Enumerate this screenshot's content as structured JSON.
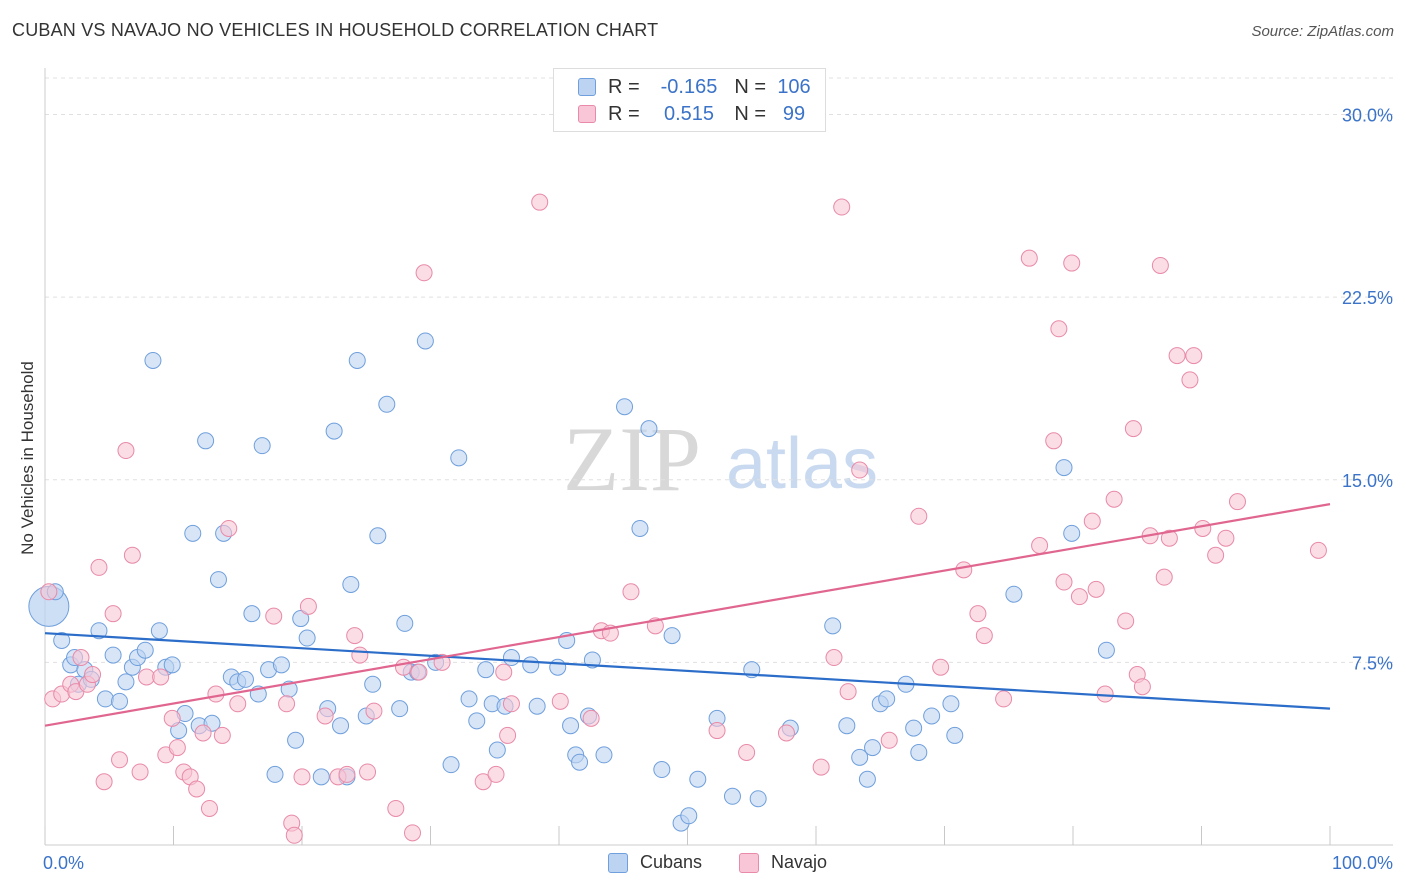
{
  "title": "CUBAN VS NAVAJO NO VEHICLES IN HOUSEHOLD CORRELATION CHART",
  "source": "Source: ZipAtlas.com",
  "watermark": {
    "zip": "ZIP",
    "atlas": "atlas"
  },
  "legend_top": {
    "r_label": "R =",
    "n_label": "N =",
    "rows": [
      {
        "r": "-0.165",
        "n": "106"
      },
      {
        "r": "0.515",
        "n": "99"
      }
    ]
  },
  "legend_bottom": [
    "Cubans",
    "Navajo"
  ],
  "colors": {
    "cubans_fill": "#bcd4f2",
    "cubans_stroke": "#6f9fdc",
    "cubans_line": "#2b6dc9",
    "navajo_fill": "#f8c6d6",
    "navajo_stroke": "#e88aa8",
    "navajo_line": "#e06690",
    "axis_label": "#3b73c8"
  },
  "chart_data": {
    "type": "scatter",
    "title": "CUBAN VS NAVAJO NO VEHICLES IN HOUSEHOLD CORRELATION CHART",
    "xlabel": "",
    "ylabel": "No Vehicles in Household",
    "xlim": [
      0,
      100
    ],
    "ylim": [
      0,
      31.5
    ],
    "x_tick_labels": [
      "0.0%",
      "100.0%"
    ],
    "y_ticks": [
      7.5,
      15.0,
      22.5,
      30.0
    ],
    "y_tick_labels": [
      "7.5%",
      "15.0%",
      "22.5%",
      "30.0%"
    ],
    "grid": true,
    "legend_position": "top-center",
    "series": [
      {
        "name": "Cubans",
        "r": -0.165,
        "n": 106,
        "trend": {
          "x": [
            0,
            100
          ],
          "y": [
            8.7,
            5.6
          ]
        },
        "points": [
          [
            0.3,
            9.8
          ],
          [
            0.8,
            10.4
          ],
          [
            1.3,
            8.4
          ],
          [
            2.0,
            7.4
          ],
          [
            2.3,
            7.7
          ],
          [
            2.6,
            6.6
          ],
          [
            3.1,
            7.2
          ],
          [
            3.6,
            6.8
          ],
          [
            4.2,
            8.8
          ],
          [
            4.7,
            6.0
          ],
          [
            5.3,
            7.8
          ],
          [
            5.8,
            5.9
          ],
          [
            6.3,
            6.7
          ],
          [
            6.8,
            7.3
          ],
          [
            7.2,
            7.7
          ],
          [
            7.8,
            8.0
          ],
          [
            8.4,
            19.9
          ],
          [
            8.9,
            8.8
          ],
          [
            9.4,
            7.3
          ],
          [
            9.9,
            7.4
          ],
          [
            10.4,
            4.7
          ],
          [
            10.9,
            5.4
          ],
          [
            11.5,
            12.8
          ],
          [
            12.0,
            4.9
          ],
          [
            12.5,
            16.6
          ],
          [
            13.0,
            5.0
          ],
          [
            13.5,
            10.9
          ],
          [
            13.9,
            12.8
          ],
          [
            14.5,
            6.9
          ],
          [
            15.0,
            6.7
          ],
          [
            15.6,
            6.8
          ],
          [
            16.1,
            9.5
          ],
          [
            16.6,
            6.2
          ],
          [
            16.9,
            16.4
          ],
          [
            17.4,
            7.2
          ],
          [
            17.9,
            2.9
          ],
          [
            18.4,
            7.4
          ],
          [
            19.0,
            6.4
          ],
          [
            19.5,
            4.3
          ],
          [
            19.9,
            9.3
          ],
          [
            20.4,
            8.5
          ],
          [
            21.5,
            2.8
          ],
          [
            22.0,
            5.6
          ],
          [
            22.5,
            17.0
          ],
          [
            23.0,
            4.9
          ],
          [
            23.5,
            2.8
          ],
          [
            23.8,
            10.7
          ],
          [
            24.3,
            19.9
          ],
          [
            25.0,
            5.3
          ],
          [
            25.5,
            6.6
          ],
          [
            25.9,
            12.7
          ],
          [
            26.6,
            18.1
          ],
          [
            27.6,
            5.6
          ],
          [
            28.0,
            9.1
          ],
          [
            28.5,
            7.1
          ],
          [
            29.0,
            7.1
          ],
          [
            29.6,
            20.7
          ],
          [
            30.4,
            7.5
          ],
          [
            31.6,
            3.3
          ],
          [
            32.2,
            15.9
          ],
          [
            33.0,
            6.0
          ],
          [
            33.6,
            5.1
          ],
          [
            34.3,
            7.2
          ],
          [
            34.8,
            5.8
          ],
          [
            35.2,
            3.9
          ],
          [
            35.8,
            5.7
          ],
          [
            36.3,
            7.7
          ],
          [
            37.8,
            7.4
          ],
          [
            38.3,
            5.7
          ],
          [
            39.9,
            7.3
          ],
          [
            40.6,
            8.4
          ],
          [
            40.9,
            4.9
          ],
          [
            41.3,
            3.7
          ],
          [
            41.6,
            3.4
          ],
          [
            42.3,
            5.3
          ],
          [
            42.6,
            7.6
          ],
          [
            43.5,
            3.7
          ],
          [
            45.1,
            18.0
          ],
          [
            46.3,
            13.0
          ],
          [
            47.0,
            17.1
          ],
          [
            48.0,
            3.1
          ],
          [
            48.8,
            8.6
          ],
          [
            49.5,
            0.9
          ],
          [
            50.1,
            1.2
          ],
          [
            50.8,
            2.7
          ],
          [
            52.3,
            5.2
          ],
          [
            53.5,
            2.0
          ],
          [
            55.0,
            7.2
          ],
          [
            55.5,
            1.9
          ],
          [
            58.0,
            4.8
          ],
          [
            61.3,
            9.0
          ],
          [
            62.4,
            4.9
          ],
          [
            63.4,
            3.6
          ],
          [
            64.0,
            2.7
          ],
          [
            64.4,
            4.0
          ],
          [
            65.0,
            5.8
          ],
          [
            65.5,
            6.0
          ],
          [
            67.0,
            6.6
          ],
          [
            67.6,
            4.8
          ],
          [
            68.0,
            3.8
          ],
          [
            69.0,
            5.3
          ],
          [
            70.5,
            5.8
          ],
          [
            70.8,
            4.5
          ],
          [
            75.4,
            10.3
          ],
          [
            79.3,
            15.5
          ],
          [
            79.9,
            12.8
          ],
          [
            82.6,
            8.0
          ]
        ]
      },
      {
        "name": "Navajo",
        "r": 0.515,
        "n": 99,
        "trend": {
          "x": [
            0,
            100
          ],
          "y": [
            4.9,
            14.0
          ]
        },
        "points": [
          [
            0.3,
            10.4
          ],
          [
            0.6,
            6.0
          ],
          [
            1.3,
            6.2
          ],
          [
            2.0,
            6.6
          ],
          [
            2.4,
            6.3
          ],
          [
            2.8,
            7.7
          ],
          [
            3.3,
            6.6
          ],
          [
            3.7,
            7.0
          ],
          [
            4.2,
            11.4
          ],
          [
            4.6,
            2.6
          ],
          [
            5.3,
            9.5
          ],
          [
            5.8,
            3.5
          ],
          [
            6.3,
            16.2
          ],
          [
            6.8,
            11.9
          ],
          [
            7.4,
            3.0
          ],
          [
            7.9,
            6.9
          ],
          [
            9.0,
            6.9
          ],
          [
            9.4,
            3.7
          ],
          [
            9.9,
            5.2
          ],
          [
            10.3,
            4.0
          ],
          [
            10.8,
            3.0
          ],
          [
            11.3,
            2.8
          ],
          [
            11.8,
            2.3
          ],
          [
            12.3,
            4.6
          ],
          [
            12.8,
            1.5
          ],
          [
            13.3,
            6.2
          ],
          [
            13.8,
            4.5
          ],
          [
            14.3,
            13.0
          ],
          [
            15.0,
            5.8
          ],
          [
            17.8,
            9.4
          ],
          [
            18.8,
            5.8
          ],
          [
            19.2,
            0.9
          ],
          [
            19.4,
            0.4
          ],
          [
            20.0,
            2.8
          ],
          [
            20.5,
            9.8
          ],
          [
            21.8,
            5.3
          ],
          [
            22.8,
            2.8
          ],
          [
            23.5,
            2.9
          ],
          [
            24.1,
            8.6
          ],
          [
            24.5,
            7.8
          ],
          [
            25.1,
            3.0
          ],
          [
            25.6,
            5.5
          ],
          [
            27.3,
            1.5
          ],
          [
            27.9,
            7.3
          ],
          [
            28.6,
            0.5
          ],
          [
            29.1,
            7.1
          ],
          [
            29.5,
            23.5
          ],
          [
            30.9,
            7.5
          ],
          [
            34.1,
            2.6
          ],
          [
            35.1,
            2.9
          ],
          [
            35.7,
            7.1
          ],
          [
            36.0,
            4.5
          ],
          [
            36.3,
            5.8
          ],
          [
            38.5,
            26.4
          ],
          [
            40.1,
            5.9
          ],
          [
            42.5,
            5.2
          ],
          [
            43.3,
            8.8
          ],
          [
            44.0,
            8.7
          ],
          [
            45.6,
            10.4
          ],
          [
            47.5,
            9.0
          ],
          [
            52.3,
            4.7
          ],
          [
            54.6,
            3.8
          ],
          [
            57.7,
            4.6
          ],
          [
            60.4,
            3.2
          ],
          [
            61.4,
            7.7
          ],
          [
            62.0,
            26.2
          ],
          [
            62.5,
            6.3
          ],
          [
            63.4,
            15.4
          ],
          [
            65.7,
            4.3
          ],
          [
            68.0,
            13.5
          ],
          [
            69.7,
            7.3
          ],
          [
            71.5,
            11.3
          ],
          [
            72.6,
            9.5
          ],
          [
            73.1,
            8.6
          ],
          [
            74.6,
            6.0
          ],
          [
            76.6,
            24.1
          ],
          [
            77.4,
            12.3
          ],
          [
            78.5,
            16.6
          ],
          [
            78.9,
            21.2
          ],
          [
            79.3,
            10.8
          ],
          [
            79.9,
            23.9
          ],
          [
            80.5,
            10.2
          ],
          [
            81.5,
            13.3
          ],
          [
            81.8,
            10.5
          ],
          [
            82.5,
            6.2
          ],
          [
            83.2,
            14.2
          ],
          [
            84.1,
            9.2
          ],
          [
            84.7,
            17.1
          ],
          [
            85.0,
            7.0
          ],
          [
            85.4,
            6.5
          ],
          [
            86.0,
            12.7
          ],
          [
            86.8,
            23.8
          ],
          [
            87.1,
            11.0
          ],
          [
            87.5,
            12.6
          ],
          [
            88.1,
            20.1
          ],
          [
            89.1,
            19.1
          ],
          [
            89.4,
            20.1
          ],
          [
            90.1,
            13.0
          ],
          [
            91.1,
            11.9
          ],
          [
            91.9,
            12.6
          ],
          [
            92.8,
            14.1
          ],
          [
            99.1,
            12.1
          ]
        ]
      }
    ]
  }
}
